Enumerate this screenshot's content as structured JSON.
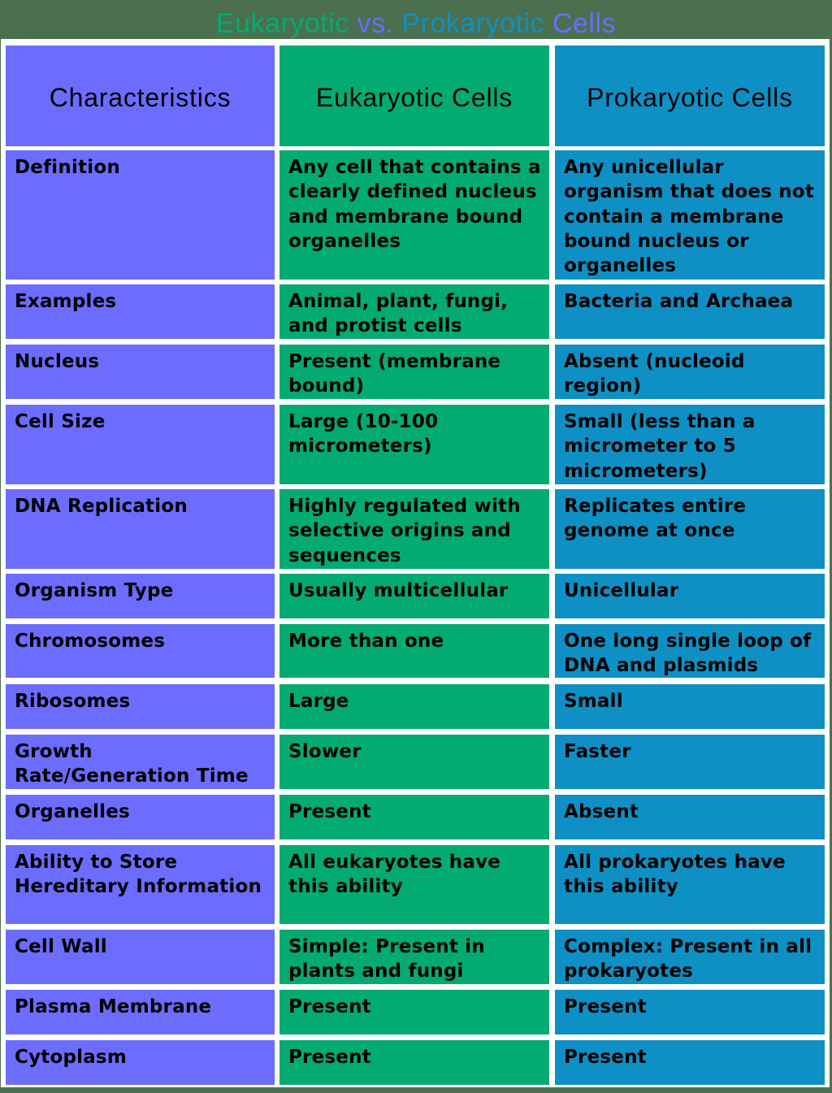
{
  "title": {
    "parts": [
      {
        "text": "Eukaryotic",
        "color": "#03ab70"
      },
      {
        "text": " vs. ",
        "color": "#6c6cfe"
      },
      {
        "text": "Prokaryotic",
        "color": "#0e90c4"
      },
      {
        "text": " Cells",
        "color": "#6c6cfe"
      }
    ]
  },
  "colors": {
    "characteristics": "#6c6cfe",
    "eukaryotic": "#03ab70",
    "prokaryotic": "#0e90c4",
    "frame": "#ffffff",
    "background": "#4b7050"
  },
  "table": {
    "headers": [
      "Characteristics",
      "Eukaryotic Cells",
      "Prokaryotic Cells"
    ],
    "rows": [
      {
        "characteristic": "Definition",
        "eukaryotic": "Any cell that contains a clearly defined nucleus and membrane bound organelles",
        "prokaryotic": "Any unicellular organism that does not contain a membrane bound nucleus or organelles"
      },
      {
        "characteristic": "Examples",
        "eukaryotic": "Animal, plant, fungi, and protist cells",
        "prokaryotic": "Bacteria and Archaea"
      },
      {
        "characteristic": "Nucleus",
        "eukaryotic": "Present (membrane bound)",
        "prokaryotic": "Absent (nucleoid region)"
      },
      {
        "characteristic": "Cell Size",
        "eukaryotic": "Large (10-100 micrometers)",
        "prokaryotic": "Small (less than a micrometer to 5 micrometers)"
      },
      {
        "characteristic": "DNA Replication",
        "eukaryotic": "Highly regulated with selective origins and sequences",
        "prokaryotic": "Replicates entire genome at once"
      },
      {
        "characteristic": "Organism Type",
        "eukaryotic": "Usually multicellular",
        "prokaryotic": "Unicellular"
      },
      {
        "characteristic": "Chromosomes",
        "eukaryotic": "More than one",
        "prokaryotic": "One long single loop of DNA and plasmids"
      },
      {
        "characteristic": "Ribosomes",
        "eukaryotic": "Large",
        "prokaryotic": "Small"
      },
      {
        "characteristic": "Growth Rate/Generation Time",
        "eukaryotic": "Slower",
        "prokaryotic": "Faster"
      },
      {
        "characteristic": "Organelles",
        "eukaryotic": "Present",
        "prokaryotic": "Absent"
      },
      {
        "characteristic": "Ability to Store Hereditary Information",
        "eukaryotic": "All eukaryotes have this ability",
        "prokaryotic": "All prokaryotes have this ability"
      },
      {
        "characteristic": "Cell Wall",
        "eukaryotic": "Simple: Present in plants and fungi",
        "prokaryotic": "Complex: Present in all prokaryotes"
      },
      {
        "characteristic": "Plasma Membrane",
        "eukaryotic": "Present",
        "prokaryotic": "Present"
      },
      {
        "characteristic": "Cytoplasm",
        "eukaryotic": "Present",
        "prokaryotic": "Present"
      }
    ]
  }
}
